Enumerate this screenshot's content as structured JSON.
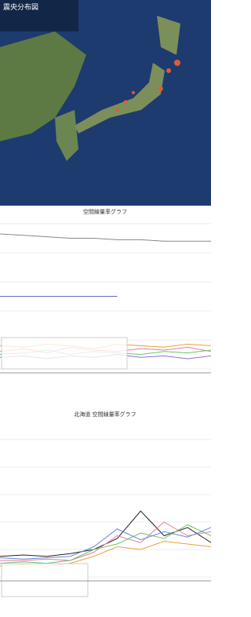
{
  "map": {
    "title": "震央分布図"
  },
  "charts": [
    {
      "title": "空間線量率グラフ",
      "ylim": [
        0,
        1
      ],
      "series": [
        {
          "color": "#888888",
          "values": [
            0.93,
            0.92,
            0.91,
            0.9,
            0.9,
            0.89,
            0.89,
            0.88,
            0.88,
            0.88
          ]
        },
        {
          "color": "#6666cc",
          "values": [
            0.5,
            0.5,
            0.5,
            0.5,
            0.5,
            0.5,
            null,
            null,
            null,
            null
          ]
        },
        {
          "color": "#e87aa0",
          "values": [
            0.12,
            0.14,
            0.11,
            0.15,
            0.13,
            0.12,
            0.14,
            0.13,
            0.15,
            0.12
          ]
        },
        {
          "color": "#6ac46a",
          "values": [
            0.1,
            0.11,
            0.13,
            0.1,
            0.12,
            0.11,
            0.1,
            0.12,
            0.11,
            0.13
          ]
        },
        {
          "color": "#e8a040",
          "values": [
            0.16,
            0.15,
            0.17,
            0.16,
            0.14,
            0.17,
            0.16,
            0.15,
            0.17,
            0.16
          ]
        },
        {
          "color": "#9a6acc",
          "values": [
            0.08,
            0.09,
            0.07,
            0.09,
            0.08,
            0.1,
            0.08,
            0.09,
            0.07,
            0.09
          ]
        }
      ]
    },
    {
      "title": "北海道 空間線量率グラフ",
      "ylim": [
        0,
        1
      ],
      "series": [
        {
          "color": "#222222",
          "values": [
            0.15,
            0.16,
            0.15,
            0.17,
            0.2,
            0.28,
            0.48,
            0.3,
            0.36,
            0.25
          ]
        },
        {
          "color": "#e87aa0",
          "values": [
            0.12,
            0.12,
            0.13,
            0.12,
            0.18,
            0.3,
            0.25,
            0.4,
            0.3,
            0.33
          ]
        },
        {
          "color": "#6ac46a",
          "values": [
            0.1,
            0.11,
            0.1,
            0.12,
            0.2,
            0.24,
            0.32,
            0.28,
            0.38,
            0.3
          ]
        },
        {
          "color": "#6688dd",
          "values": [
            0.14,
            0.13,
            0.14,
            0.15,
            0.22,
            0.35,
            0.27,
            0.33,
            0.29,
            0.36
          ]
        },
        {
          "color": "#e8a040",
          "values": [
            0.08,
            0.09,
            0.08,
            0.1,
            0.15,
            0.22,
            0.2,
            0.26,
            0.24,
            0.22
          ]
        }
      ]
    }
  ]
}
